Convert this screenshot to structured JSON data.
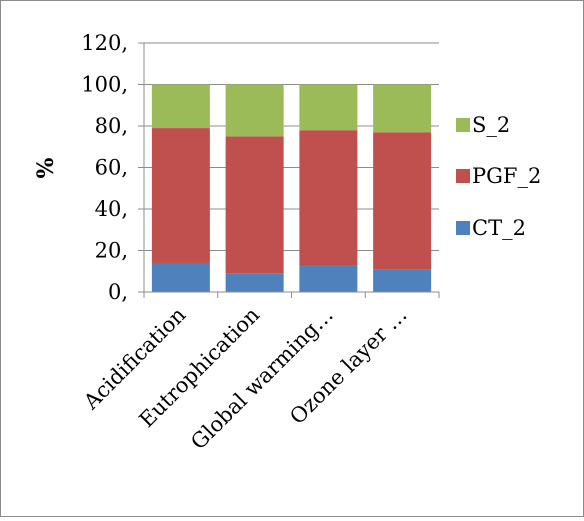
{
  "chart_data": {
    "type": "bar",
    "stacked": true,
    "categories": [
      "Acidification",
      "Eutrophication",
      "Global warming…",
      "Ozone layer …"
    ],
    "series": [
      {
        "name": "CT_2",
        "color": "#4f81bd",
        "values": [
          14,
          9,
          13,
          11
        ]
      },
      {
        "name": "PGF_2",
        "color": "#c0504d",
        "values": [
          65,
          66,
          65,
          66
        ]
      },
      {
        "name": "S_2",
        "color": "#9bbb59",
        "values": [
          21,
          25,
          22,
          23
        ]
      }
    ],
    "ylabel": "%",
    "ylim": [
      0,
      120
    ],
    "yticks": [
      0,
      20,
      40,
      60,
      80,
      100,
      120
    ],
    "ytick_labels": [
      "0,",
      "20,",
      "40,",
      "60,",
      "80,",
      "100,",
      "120,"
    ],
    "grid": true,
    "legend_position": "right",
    "legend_order": [
      "S_2",
      "PGF_2",
      "CT_2"
    ]
  }
}
